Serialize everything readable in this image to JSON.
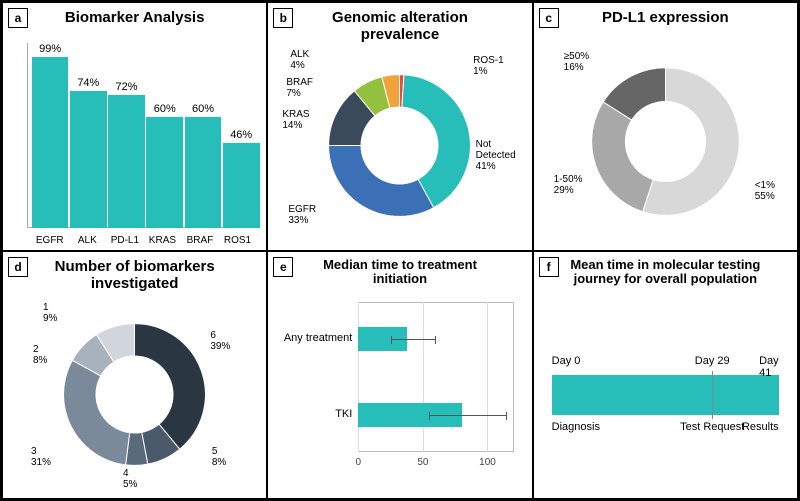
{
  "colors": {
    "teal": "#27bdb8",
    "axis": "#888888",
    "err": "#555555"
  },
  "a": {
    "letter": "a",
    "title": "Biomarker Analysis",
    "title_fontsize": 15,
    "type": "bar",
    "ylim": [
      0,
      100
    ],
    "categories": [
      "EGFR",
      "ALK",
      "PD-L1",
      "KRAS",
      "BRAF",
      "ROS1"
    ],
    "values": [
      99,
      74,
      72,
      60,
      60,
      46
    ],
    "value_labels": [
      "99%",
      "74%",
      "72%",
      "60%",
      "60%",
      "46%"
    ],
    "bar_color": "#27bdb8",
    "label_fontsize": 10,
    "value_fontsize": 11
  },
  "b": {
    "letter": "b",
    "title": "Genomic alteration prevalence",
    "title_fontsize": 15,
    "type": "donut",
    "inner_ratio": 0.55,
    "slices": [
      {
        "label": "ROS-1",
        "pct": 1,
        "sub": "1%",
        "color": "#e74c3c"
      },
      {
        "label": "Not Detected",
        "pct": 41,
        "sub": "41%",
        "color": "#27bdb8"
      },
      {
        "label": "EGFR",
        "pct": 33,
        "sub": "33%",
        "color": "#3b6fb6"
      },
      {
        "label": "KRAS",
        "pct": 14,
        "sub": "14%",
        "color": "#3a4a5a"
      },
      {
        "label": "BRAF",
        "pct": 7,
        "sub": "7%",
        "color": "#94c13d"
      },
      {
        "label": "ALK",
        "pct": 4,
        "sub": "4%",
        "color": "#f2a23a"
      }
    ]
  },
  "c": {
    "letter": "c",
    "title": "PD-L1 expression",
    "title_fontsize": 15,
    "type": "donut",
    "inner_ratio": 0.55,
    "slices": [
      {
        "label": "<1%",
        "pct": 55,
        "sub": "55%",
        "color": "#d8d8d8"
      },
      {
        "label": "1-50%",
        "pct": 29,
        "sub": "29%",
        "color": "#a8a8a8"
      },
      {
        "label": "≥50%",
        "pct": 16,
        "sub": "16%",
        "color": "#666666"
      }
    ]
  },
  "d": {
    "letter": "d",
    "title": "Number of biomarkers investigated",
    "title_fontsize": 15,
    "type": "donut",
    "inner_ratio": 0.55,
    "slices": [
      {
        "label": "6",
        "pct": 39,
        "sub": "39%",
        "color": "#2a3642"
      },
      {
        "label": "5",
        "pct": 8,
        "sub": "8%",
        "color": "#4a5a6a"
      },
      {
        "label": "4",
        "pct": 5,
        "sub": "5%",
        "color": "#5a6a7a"
      },
      {
        "label": "3",
        "pct": 31,
        "sub": "31%",
        "color": "#7a8a9a"
      },
      {
        "label": "2",
        "pct": 8,
        "sub": "8%",
        "color": "#a8b2bc"
      },
      {
        "label": "1",
        "pct": 9,
        "sub": "9%",
        "color": "#d0d6dc"
      }
    ]
  },
  "e": {
    "letter": "e",
    "title": "Median time to treatment initiation",
    "title_fontsize": 13,
    "type": "hbar",
    "xlim": [
      0,
      120
    ],
    "ticks": [
      0,
      50,
      100
    ],
    "bar_color": "#27bdb8",
    "rows": [
      {
        "label": "Any treatment",
        "value": 38,
        "err_lo": 25,
        "err_hi": 60
      },
      {
        "label": "TKI",
        "value": 80,
        "err_lo": 55,
        "err_hi": 115
      }
    ]
  },
  "f": {
    "letter": "f",
    "title": "Mean time in molecular testing journey for overall population",
    "title_fontsize": 13,
    "type": "timeline",
    "bar_color": "#27bdb8",
    "range": [
      0,
      41
    ],
    "milestones": [
      {
        "top": "Day 0",
        "bottom": "Diagnosis",
        "day": 0
      },
      {
        "top": "Day 29",
        "bottom": "Test Request",
        "day": 29
      },
      {
        "top": "Day 41",
        "bottom": "Results",
        "day": 41
      }
    ]
  }
}
